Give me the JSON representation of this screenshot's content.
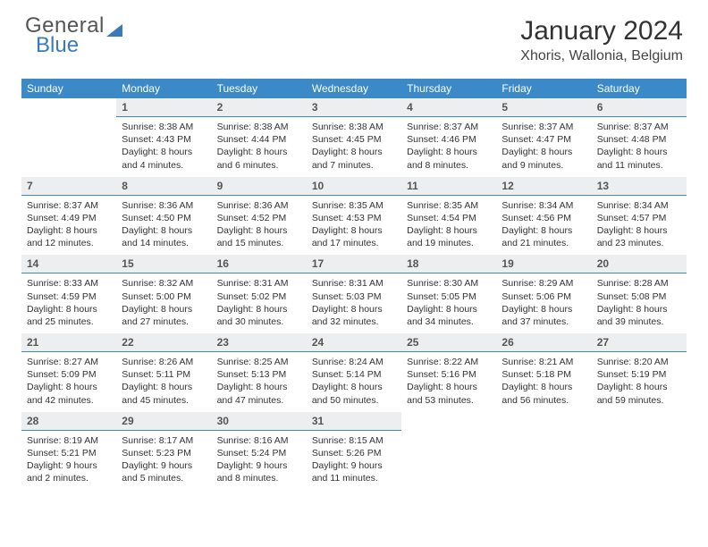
{
  "brand": {
    "word1": "General",
    "word2": "Blue"
  },
  "title": "January 2024",
  "location": "Xhoris, Wallonia, Belgium",
  "colors": {
    "header_bg": "#3b89c7",
    "header_text": "#ffffff",
    "daynum_bg": "#eceef0",
    "daynum_text": "#555555",
    "divider": "#3b89c7",
    "body_text": "#333333",
    "brand_gray": "#555555",
    "brand_blue": "#3a7ab8",
    "page_bg": "#ffffff"
  },
  "typography": {
    "title_fontsize": 30,
    "location_fontsize": 16,
    "dayhead_fontsize": 12,
    "daynum_fontsize": 12,
    "cell_fontsize": 10.5
  },
  "day_headers": [
    "Sunday",
    "Monday",
    "Tuesday",
    "Wednesday",
    "Thursday",
    "Friday",
    "Saturday"
  ],
  "weeks": [
    [
      {
        "num": "",
        "lines": []
      },
      {
        "num": "1",
        "lines": [
          "Sunrise: 8:38 AM",
          "Sunset: 4:43 PM",
          "Daylight: 8 hours",
          "and 4 minutes."
        ]
      },
      {
        "num": "2",
        "lines": [
          "Sunrise: 8:38 AM",
          "Sunset: 4:44 PM",
          "Daylight: 8 hours",
          "and 6 minutes."
        ]
      },
      {
        "num": "3",
        "lines": [
          "Sunrise: 8:38 AM",
          "Sunset: 4:45 PM",
          "Daylight: 8 hours",
          "and 7 minutes."
        ]
      },
      {
        "num": "4",
        "lines": [
          "Sunrise: 8:37 AM",
          "Sunset: 4:46 PM",
          "Daylight: 8 hours",
          "and 8 minutes."
        ]
      },
      {
        "num": "5",
        "lines": [
          "Sunrise: 8:37 AM",
          "Sunset: 4:47 PM",
          "Daylight: 8 hours",
          "and 9 minutes."
        ]
      },
      {
        "num": "6",
        "lines": [
          "Sunrise: 8:37 AM",
          "Sunset: 4:48 PM",
          "Daylight: 8 hours",
          "and 11 minutes."
        ]
      }
    ],
    [
      {
        "num": "7",
        "lines": [
          "Sunrise: 8:37 AM",
          "Sunset: 4:49 PM",
          "Daylight: 8 hours",
          "and 12 minutes."
        ]
      },
      {
        "num": "8",
        "lines": [
          "Sunrise: 8:36 AM",
          "Sunset: 4:50 PM",
          "Daylight: 8 hours",
          "and 14 minutes."
        ]
      },
      {
        "num": "9",
        "lines": [
          "Sunrise: 8:36 AM",
          "Sunset: 4:52 PM",
          "Daylight: 8 hours",
          "and 15 minutes."
        ]
      },
      {
        "num": "10",
        "lines": [
          "Sunrise: 8:35 AM",
          "Sunset: 4:53 PM",
          "Daylight: 8 hours",
          "and 17 minutes."
        ]
      },
      {
        "num": "11",
        "lines": [
          "Sunrise: 8:35 AM",
          "Sunset: 4:54 PM",
          "Daylight: 8 hours",
          "and 19 minutes."
        ]
      },
      {
        "num": "12",
        "lines": [
          "Sunrise: 8:34 AM",
          "Sunset: 4:56 PM",
          "Daylight: 8 hours",
          "and 21 minutes."
        ]
      },
      {
        "num": "13",
        "lines": [
          "Sunrise: 8:34 AM",
          "Sunset: 4:57 PM",
          "Daylight: 8 hours",
          "and 23 minutes."
        ]
      }
    ],
    [
      {
        "num": "14",
        "lines": [
          "Sunrise: 8:33 AM",
          "Sunset: 4:59 PM",
          "Daylight: 8 hours",
          "and 25 minutes."
        ]
      },
      {
        "num": "15",
        "lines": [
          "Sunrise: 8:32 AM",
          "Sunset: 5:00 PM",
          "Daylight: 8 hours",
          "and 27 minutes."
        ]
      },
      {
        "num": "16",
        "lines": [
          "Sunrise: 8:31 AM",
          "Sunset: 5:02 PM",
          "Daylight: 8 hours",
          "and 30 minutes."
        ]
      },
      {
        "num": "17",
        "lines": [
          "Sunrise: 8:31 AM",
          "Sunset: 5:03 PM",
          "Daylight: 8 hours",
          "and 32 minutes."
        ]
      },
      {
        "num": "18",
        "lines": [
          "Sunrise: 8:30 AM",
          "Sunset: 5:05 PM",
          "Daylight: 8 hours",
          "and 34 minutes."
        ]
      },
      {
        "num": "19",
        "lines": [
          "Sunrise: 8:29 AM",
          "Sunset: 5:06 PM",
          "Daylight: 8 hours",
          "and 37 minutes."
        ]
      },
      {
        "num": "20",
        "lines": [
          "Sunrise: 8:28 AM",
          "Sunset: 5:08 PM",
          "Daylight: 8 hours",
          "and 39 minutes."
        ]
      }
    ],
    [
      {
        "num": "21",
        "lines": [
          "Sunrise: 8:27 AM",
          "Sunset: 5:09 PM",
          "Daylight: 8 hours",
          "and 42 minutes."
        ]
      },
      {
        "num": "22",
        "lines": [
          "Sunrise: 8:26 AM",
          "Sunset: 5:11 PM",
          "Daylight: 8 hours",
          "and 45 minutes."
        ]
      },
      {
        "num": "23",
        "lines": [
          "Sunrise: 8:25 AM",
          "Sunset: 5:13 PM",
          "Daylight: 8 hours",
          "and 47 minutes."
        ]
      },
      {
        "num": "24",
        "lines": [
          "Sunrise: 8:24 AM",
          "Sunset: 5:14 PM",
          "Daylight: 8 hours",
          "and 50 minutes."
        ]
      },
      {
        "num": "25",
        "lines": [
          "Sunrise: 8:22 AM",
          "Sunset: 5:16 PM",
          "Daylight: 8 hours",
          "and 53 minutes."
        ]
      },
      {
        "num": "26",
        "lines": [
          "Sunrise: 8:21 AM",
          "Sunset: 5:18 PM",
          "Daylight: 8 hours",
          "and 56 minutes."
        ]
      },
      {
        "num": "27",
        "lines": [
          "Sunrise: 8:20 AM",
          "Sunset: 5:19 PM",
          "Daylight: 8 hours",
          "and 59 minutes."
        ]
      }
    ],
    [
      {
        "num": "28",
        "lines": [
          "Sunrise: 8:19 AM",
          "Sunset: 5:21 PM",
          "Daylight: 9 hours",
          "and 2 minutes."
        ]
      },
      {
        "num": "29",
        "lines": [
          "Sunrise: 8:17 AM",
          "Sunset: 5:23 PM",
          "Daylight: 9 hours",
          "and 5 minutes."
        ]
      },
      {
        "num": "30",
        "lines": [
          "Sunrise: 8:16 AM",
          "Sunset: 5:24 PM",
          "Daylight: 9 hours",
          "and 8 minutes."
        ]
      },
      {
        "num": "31",
        "lines": [
          "Sunrise: 8:15 AM",
          "Sunset: 5:26 PM",
          "Daylight: 9 hours",
          "and 11 minutes."
        ]
      },
      {
        "num": "",
        "lines": []
      },
      {
        "num": "",
        "lines": []
      },
      {
        "num": "",
        "lines": []
      }
    ]
  ]
}
